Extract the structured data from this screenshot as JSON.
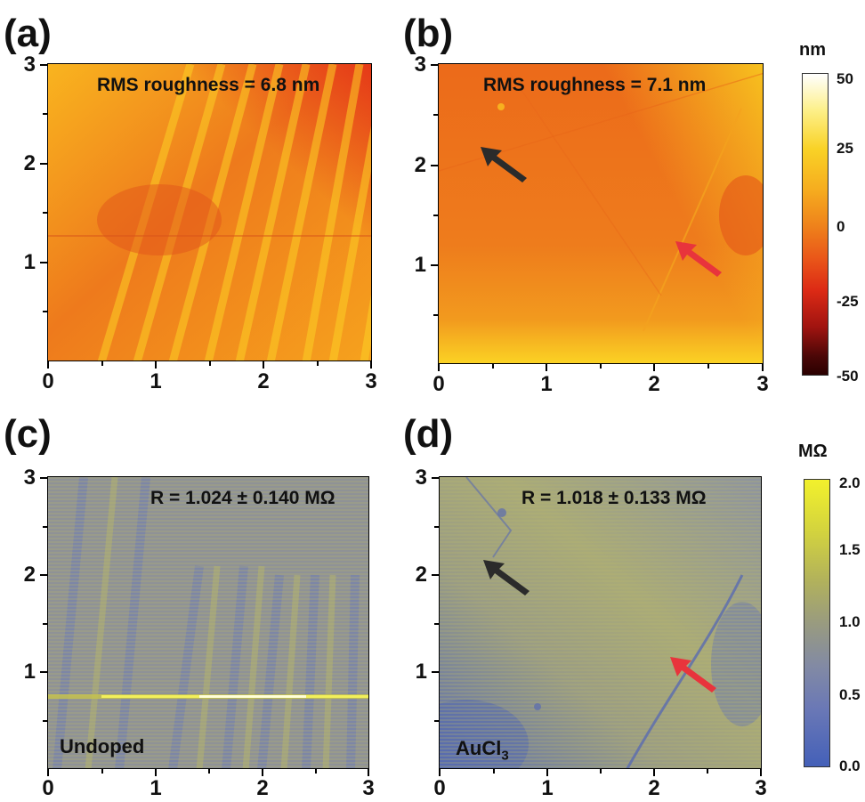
{
  "panels": {
    "a": {
      "label": "(a)",
      "annotation": "RMS roughness = 6.8 nm"
    },
    "b": {
      "label": "(b)",
      "annotation": "RMS roughness = 7.1 nm"
    },
    "c": {
      "label": "(c)",
      "annotation": "R = 1.024 ± 0.140 MΩ",
      "corner": "Undoped"
    },
    "d": {
      "label": "(d)",
      "annotation": "R = 1.018 ± 0.133 MΩ",
      "corner": "AuCl",
      "corner_sub": "3"
    }
  },
  "axis_ticks": [
    "0",
    "1",
    "2",
    "3"
  ],
  "axis_ticks_y": [
    "1",
    "2",
    "3"
  ],
  "colorbar_height": {
    "unit": "nm",
    "ticks": [
      "50",
      "25",
      "0",
      "-25",
      "-50"
    ]
  },
  "colorbar_resistance": {
    "unit": "MΩ",
    "ticks": [
      "2.0",
      "1.5",
      "1.0",
      "0.5",
      "0.0"
    ]
  },
  "colors": {
    "arrow_black": "#2b2b2b",
    "arrow_red": "#e8343c",
    "height_low": "#2a0000",
    "height_mid": "#e8701a",
    "height_high": "#ffffff",
    "res_low": "#3f5fb4",
    "res_mid": "#9d9e7e",
    "res_high": "#f0f02a"
  }
}
